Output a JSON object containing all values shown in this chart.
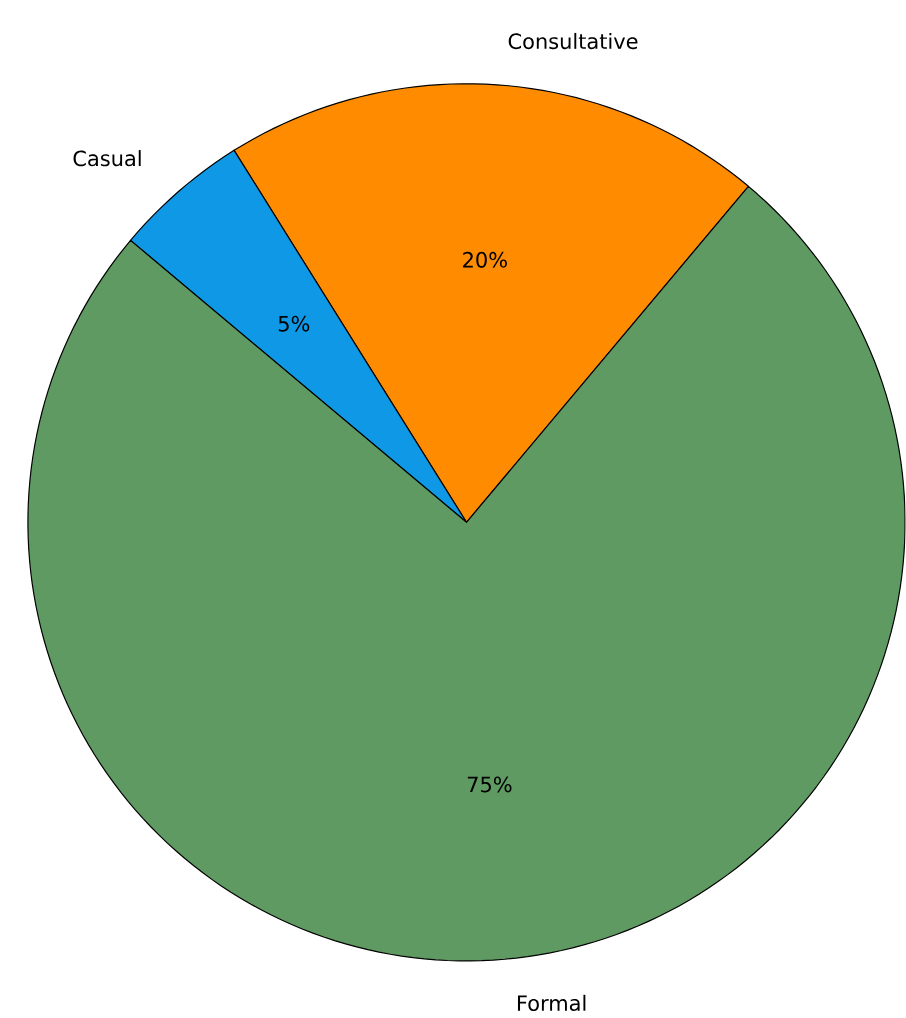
{
  "chart_data": {
    "type": "pie",
    "categories": [
      "Consultative",
      "Casual",
      "Formal"
    ],
    "values": [
      20,
      5,
      75
    ],
    "colors": [
      "#ff8c00",
      "#0f98e6",
      "#5f9a62"
    ],
    "value_labels": [
      "20%",
      "5%",
      "75%"
    ]
  }
}
